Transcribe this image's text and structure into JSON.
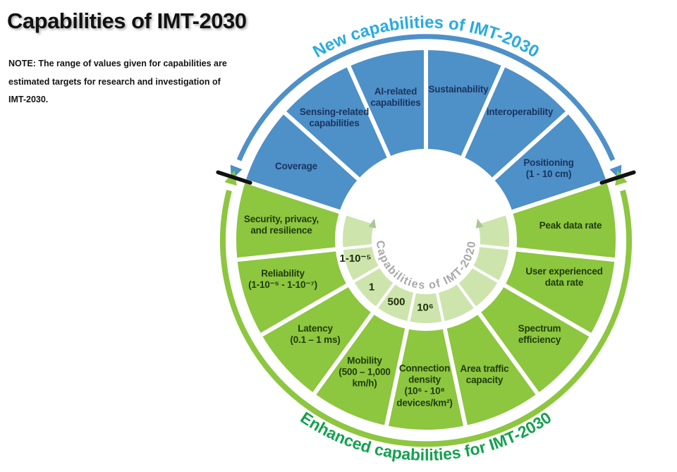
{
  "page": {
    "title": "Capabilities of IMT-2030",
    "note": "NOTE: The range of values given for capabilities are\nestimated targets for research and investigation of\nIMT-2030."
  },
  "wheel": {
    "top_arc_label": "New capabilities of IMT-2030",
    "bottom_arc_label": "Enhanced capabilities for IMT-2030",
    "center_arc_label": "Capabilities of IMT-2020",
    "new_segments": [
      "Coverage",
      "Sensing-related\ncapabilities",
      "AI-related\ncapabilities",
      "Sustainability",
      "interoperability",
      "Positioning\n(1 - 10 cm)"
    ],
    "enhanced_segments": [
      "Security, privacy,\nand resilience",
      "Reliability\n(1-10⁻⁵ - 1-10⁻⁷)",
      "Latency\n(0.1 – 1 ms)",
      "Mobility\n(500 – 1,000\nkm/h)",
      "Connection\ndensity\n(10⁶ -  10⁸\ndevices/km²)",
      "Area traffic\ncapacity",
      "Spectrum\nefficiency",
      "User experienced\ndata rate",
      "Peak data rate"
    ],
    "imt2020_values": [
      "1-10⁻⁵",
      "1",
      "500",
      "10⁶"
    ],
    "colors": {
      "blue_segment": "#4e90c8",
      "green_segment": "#8dc63f",
      "pale_ring": "#cde4ad",
      "center_arrow": "#a9c694",
      "top_arc_text": "#29abe2",
      "bottom_arc_text": "#13a14e",
      "center_arc_text": "#a8a8a8",
      "new_label_text": "#1a3560",
      "enhanced_label_text": "#1f3b0c",
      "tick": "#111111"
    }
  }
}
